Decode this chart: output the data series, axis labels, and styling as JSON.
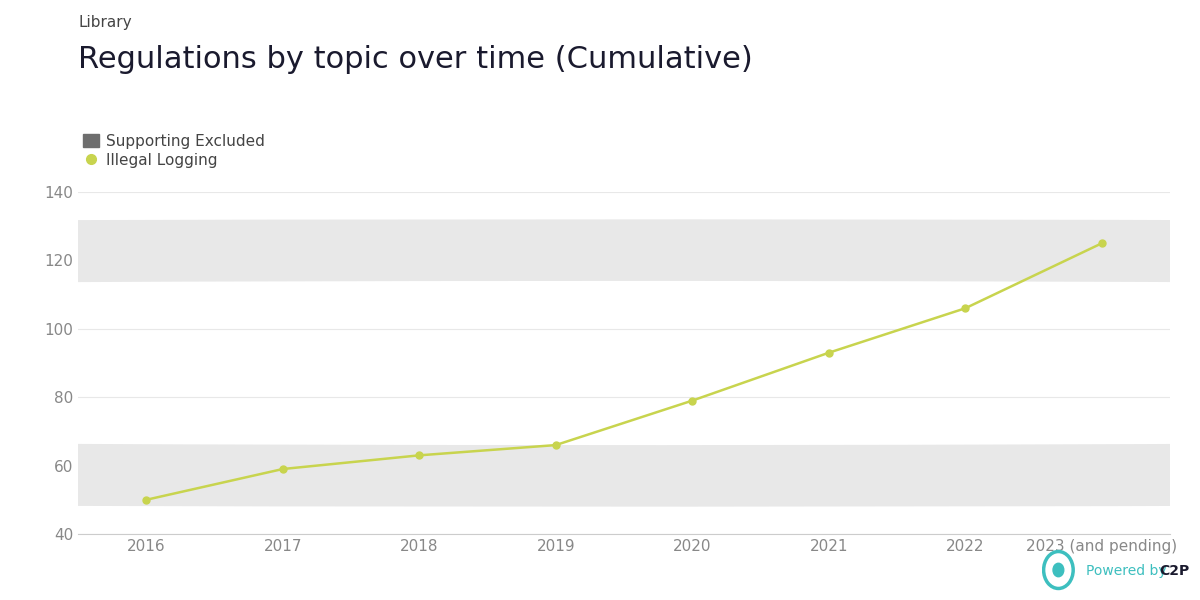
{
  "title": "Regulations by topic over time (Cumulative)",
  "subtitle": "Library",
  "legend_items": [
    {
      "label": "Supporting Excluded",
      "color": "#6e6e6e",
      "marker": "s"
    },
    {
      "label": "Illegal Logging",
      "color": "#c8d44e",
      "marker": "o"
    }
  ],
  "x_labels": [
    "2016",
    "2017",
    "2018",
    "2019",
    "2020",
    "2021",
    "2022",
    "2023 (and pending)"
  ],
  "illegal_logging": [
    50,
    59,
    63,
    66,
    79,
    93,
    106,
    125
  ],
  "line_color": "#c8d44e",
  "marker_color": "#c8d44e",
  "ylim": [
    40,
    140
  ],
  "yticks": [
    40,
    60,
    80,
    100,
    120,
    140
  ],
  "background_color": "#ffffff",
  "watermark_color": "#e8e8e8",
  "title_fontsize": 22,
  "subtitle_fontsize": 11,
  "tick_fontsize": 11,
  "legend_fontsize": 11,
  "powered_by_color": "#3dbfbf",
  "c2p_color": "#1a1a2e",
  "spine_color": "#cccccc",
  "grid_color": "#e8e8e8",
  "tick_color": "#888888"
}
